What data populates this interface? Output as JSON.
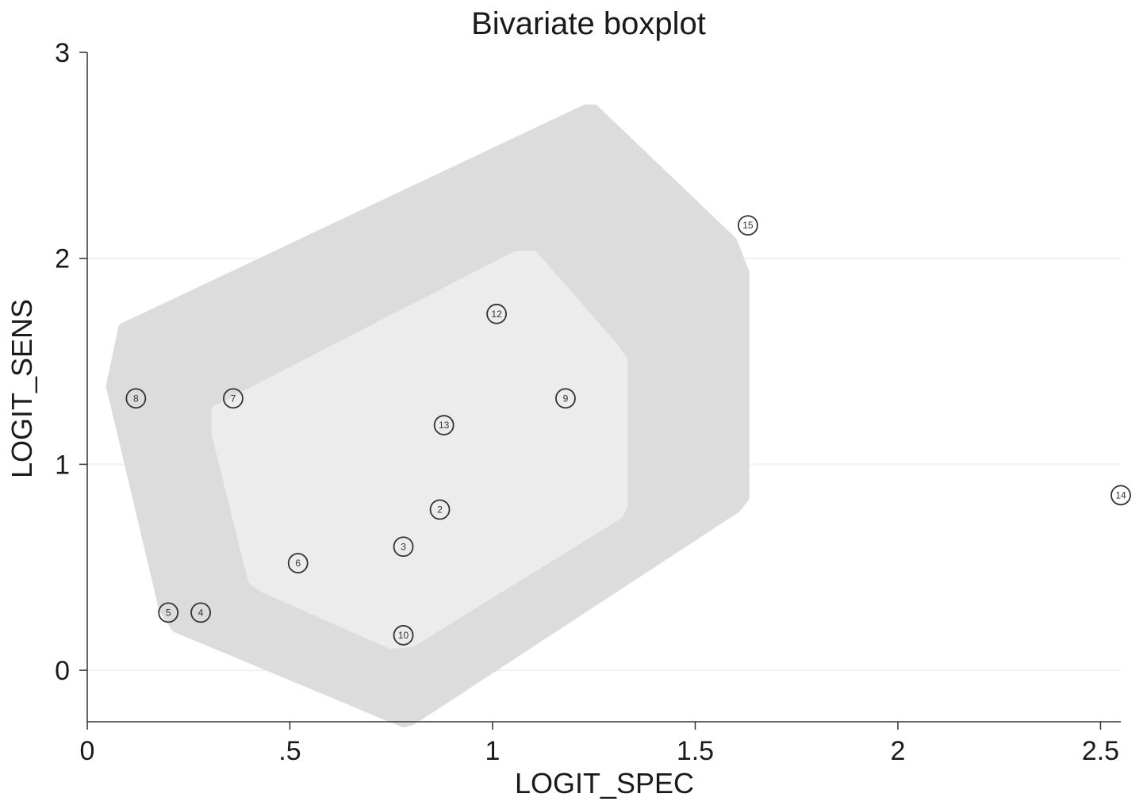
{
  "chart_data": {
    "type": "scatter",
    "title": "Bivariate boxplot",
    "xlabel": "LOGIT_SPEC",
    "ylabel": "LOGIT_SENS",
    "xlim": [
      0,
      2.55
    ],
    "ylim": [
      -0.25,
      3
    ],
    "xticks": [
      {
        "value": 0,
        "label": "0"
      },
      {
        "value": 0.5,
        "label": ".5"
      },
      {
        "value": 1,
        "label": "1"
      },
      {
        "value": 1.5,
        "label": "1.5"
      },
      {
        "value": 2,
        "label": "2"
      },
      {
        "value": 2.5,
        "label": "2.5"
      }
    ],
    "yticks": [
      {
        "value": 0,
        "label": "0"
      },
      {
        "value": 1,
        "label": "1"
      },
      {
        "value": 2,
        "label": "2"
      },
      {
        "value": 3,
        "label": "3"
      }
    ],
    "grid": "horizontal",
    "colors": {
      "outer_fence": "#dcdcdc",
      "inner_hinge": "#ececec",
      "grid": "#f2f2f2",
      "marker": "#333333"
    },
    "outer_fence": [
      [
        0.09,
        1.66
      ],
      [
        0.06,
        1.38
      ],
      [
        0.19,
        0.3
      ],
      [
        0.22,
        0.21
      ],
      [
        0.78,
        -0.25
      ],
      [
        0.8,
        -0.24
      ],
      [
        1.6,
        0.79
      ],
      [
        1.62,
        0.84
      ],
      [
        1.62,
        1.93
      ],
      [
        1.59,
        2.08
      ],
      [
        1.25,
        2.72
      ],
      [
        1.23,
        2.72
      ]
    ],
    "inner_hinge": [
      [
        0.32,
        1.26
      ],
      [
        0.32,
        1.15
      ],
      [
        0.41,
        0.44
      ],
      [
        0.44,
        0.4
      ],
      [
        0.75,
        0.13
      ],
      [
        0.8,
        0.14
      ],
      [
        1.31,
        0.76
      ],
      [
        1.32,
        0.8
      ],
      [
        1.32,
        1.5
      ],
      [
        1.3,
        1.56
      ],
      [
        1.1,
        2.01
      ],
      [
        1.06,
        2.01
      ]
    ],
    "points": [
      {
        "label": "2",
        "x": 0.87,
        "y": 0.78
      },
      {
        "label": "3",
        "x": 0.78,
        "y": 0.6
      },
      {
        "label": "4",
        "x": 0.28,
        "y": 0.28
      },
      {
        "label": "5",
        "x": 0.2,
        "y": 0.28
      },
      {
        "label": "6",
        "x": 0.52,
        "y": 0.52
      },
      {
        "label": "7",
        "x": 0.36,
        "y": 1.32
      },
      {
        "label": "8",
        "x": 0.12,
        "y": 1.32
      },
      {
        "label": "9",
        "x": 1.18,
        "y": 1.32
      },
      {
        "label": "10",
        "x": 0.78,
        "y": 0.17
      },
      {
        "label": "12",
        "x": 1.01,
        "y": 1.73
      },
      {
        "label": "13",
        "x": 0.88,
        "y": 1.19
      },
      {
        "label": "14",
        "x": 2.55,
        "y": 0.85
      },
      {
        "label": "15",
        "x": 1.63,
        "y": 2.16
      }
    ]
  }
}
